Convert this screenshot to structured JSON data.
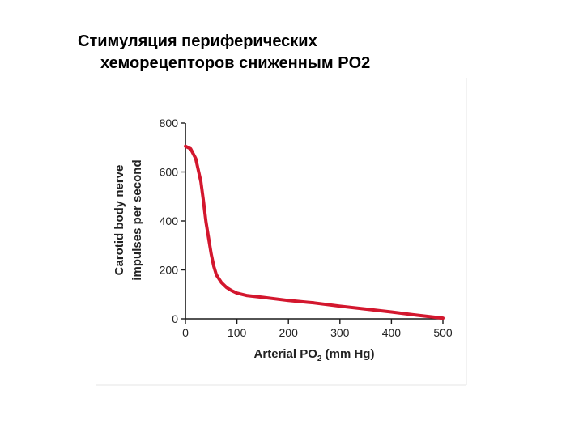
{
  "slide": {
    "title_line1": "Стимуляция периферических",
    "title_line2": "хеморецепторов сниженным PO2"
  },
  "chart_data": {
    "type": "line",
    "title": "",
    "xlabel": "Arterial PO",
    "xlabel_sub": "2",
    "xlabel_unit": " (mm Hg)",
    "ylabel_line1": "Carotid body nerve",
    "ylabel_line2": "impulses per second",
    "xlim": [
      0,
      500
    ],
    "ylim": [
      0,
      800
    ],
    "xticks": [
      0,
      100,
      200,
      300,
      400,
      500
    ],
    "yticks": [
      0,
      200,
      400,
      600,
      800
    ],
    "grid": false,
    "series": [
      {
        "name": "",
        "color": "#d3172e",
        "x": [
          0,
          10,
          20,
          30,
          35,
          40,
          45,
          50,
          55,
          60,
          70,
          80,
          90,
          100,
          120,
          150,
          200,
          250,
          300,
          350,
          400,
          450,
          500
        ],
        "y": [
          705,
          695,
          655,
          560,
          480,
          395,
          330,
          265,
          215,
          180,
          148,
          128,
          115,
          105,
          95,
          88,
          75,
          65,
          52,
          40,
          28,
          15,
          3
        ]
      }
    ]
  }
}
